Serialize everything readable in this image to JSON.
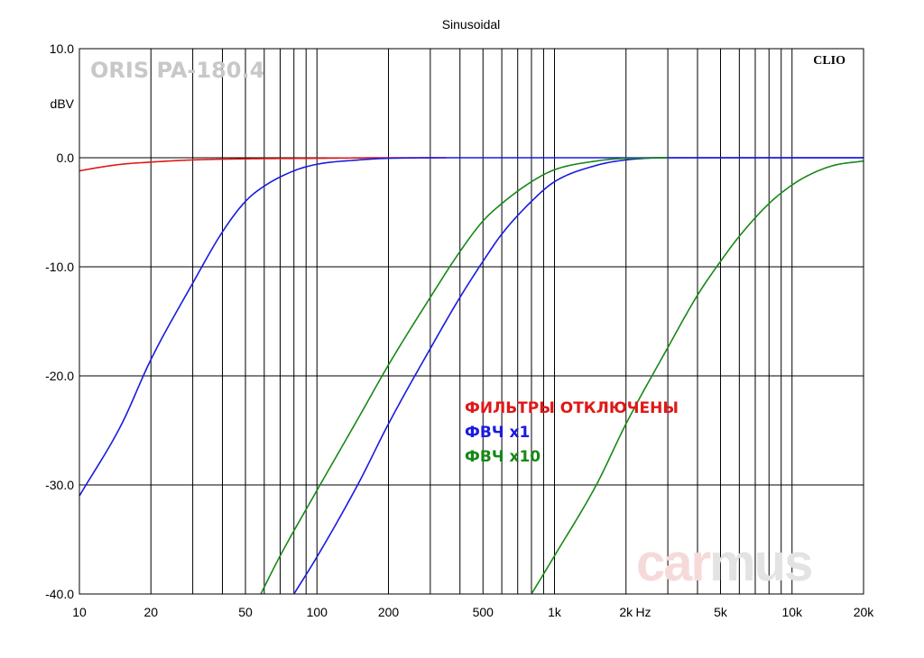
{
  "chart_data": {
    "type": "line",
    "title": "Sinusoidal",
    "brand_label": "CLIO",
    "model_label": "ORIS PA-180.4",
    "watermark": "carmus",
    "xscale": "log",
    "xlim": [
      10,
      20000
    ],
    "ylim": [
      -40,
      10
    ],
    "ylabel": "dBV",
    "x_unit_label": "Hz",
    "x_ticks": [
      {
        "value": 10,
        "label": "10"
      },
      {
        "value": 20,
        "label": "20"
      },
      {
        "value": 50,
        "label": "50"
      },
      {
        "value": 100,
        "label": "100"
      },
      {
        "value": 200,
        "label": "200"
      },
      {
        "value": 500,
        "label": "500"
      },
      {
        "value": 1000,
        "label": "1k"
      },
      {
        "value": 2000,
        "label": "2k"
      },
      {
        "value": 5000,
        "label": "5k"
      },
      {
        "value": 10000,
        "label": "10k"
      },
      {
        "value": 20000,
        "label": "20k"
      }
    ],
    "y_ticks": [
      {
        "value": 10,
        "label": "10.0"
      },
      {
        "value": 0,
        "label": "0.0"
      },
      {
        "value": -10,
        "label": "-10.0"
      },
      {
        "value": -20,
        "label": "-20.0"
      },
      {
        "value": -30,
        "label": "-30.0"
      },
      {
        "value": -40,
        "label": "-40.0"
      }
    ],
    "grid": true,
    "legend_position": "center-right",
    "series": [
      {
        "name": "ФИЛЬТРЫ ОТКЛЮЧЕНЫ",
        "color": "#e01818",
        "points": [
          [
            10,
            -1.2
          ],
          [
            12,
            -0.9
          ],
          [
            15,
            -0.6
          ],
          [
            20,
            -0.4
          ],
          [
            30,
            -0.2
          ],
          [
            50,
            -0.1
          ],
          [
            100,
            -0.05
          ],
          [
            200,
            0
          ],
          [
            350,
            0
          ]
        ]
      },
      {
        "name": "ФВЧ x1",
        "color": "#1a1ae0",
        "points": [
          [
            10,
            -31
          ],
          [
            15,
            -24.5
          ],
          [
            20,
            -18.5
          ],
          [
            30,
            -11.5
          ],
          [
            40,
            -6.8
          ],
          [
            50,
            -4
          ],
          [
            60,
            -2.6
          ],
          [
            80,
            -1.2
          ],
          [
            100,
            -0.6
          ],
          [
            150,
            -0.2
          ],
          [
            200,
            -0.05
          ],
          [
            400,
            0
          ],
          [
            1000,
            0
          ],
          [
            2000,
            0
          ],
          [
            5000,
            0
          ],
          [
            10000,
            0
          ],
          [
            15000,
            0
          ],
          [
            20000,
            0
          ]
        ]
      },
      {
        "name": "ФВЧ x1",
        "color": "#1a1ae0",
        "points": [
          [
            80,
            -40
          ],
          [
            100,
            -36.6
          ],
          [
            150,
            -29.8
          ],
          [
            200,
            -24.4
          ],
          [
            300,
            -17.5
          ],
          [
            400,
            -12.8
          ],
          [
            500,
            -9.5
          ],
          [
            600,
            -7
          ],
          [
            800,
            -4
          ],
          [
            1000,
            -2.2
          ],
          [
            1500,
            -0.7
          ],
          [
            2000,
            -0.2
          ],
          [
            3000,
            0
          ],
          [
            20000,
            0
          ]
        ]
      },
      {
        "name": "ФВЧ x10",
        "color": "#188818",
        "points": [
          [
            58,
            -40
          ],
          [
            70,
            -36.5
          ],
          [
            100,
            -30.5
          ],
          [
            150,
            -23.8
          ],
          [
            200,
            -19
          ],
          [
            300,
            -12.8
          ],
          [
            400,
            -8.6
          ],
          [
            500,
            -5.8
          ],
          [
            600,
            -4.2
          ],
          [
            800,
            -2.2
          ],
          [
            1000,
            -1.1
          ],
          [
            1500,
            -0.3
          ],
          [
            2000,
            -0.05
          ],
          [
            3000,
            0
          ]
        ]
      },
      {
        "name": "ФВЧ x10",
        "color": "#188818",
        "points": [
          [
            800,
            -40
          ],
          [
            1000,
            -36.5
          ],
          [
            1500,
            -30
          ],
          [
            2000,
            -24.4
          ],
          [
            3000,
            -17.4
          ],
          [
            4000,
            -12.6
          ],
          [
            5000,
            -9.5
          ],
          [
            6000,
            -7.2
          ],
          [
            8000,
            -4.2
          ],
          [
            10000,
            -2.5
          ],
          [
            12000,
            -1.5
          ],
          [
            15000,
            -0.7
          ],
          [
            20000,
            -0.3
          ]
        ]
      }
    ],
    "legend": [
      {
        "label": "ФИЛЬТРЫ ОТКЛЮЧЕНЫ",
        "color": "#e01818"
      },
      {
        "label": "ФВЧ x1",
        "color": "#1a1ae0"
      },
      {
        "label": "ФВЧ x10",
        "color": "#188818"
      }
    ],
    "colors": {
      "grid": "#000000",
      "background": "#ffffff",
      "watermark_car": "#f6dada",
      "watermark_mus": "#e3e3e3"
    }
  }
}
